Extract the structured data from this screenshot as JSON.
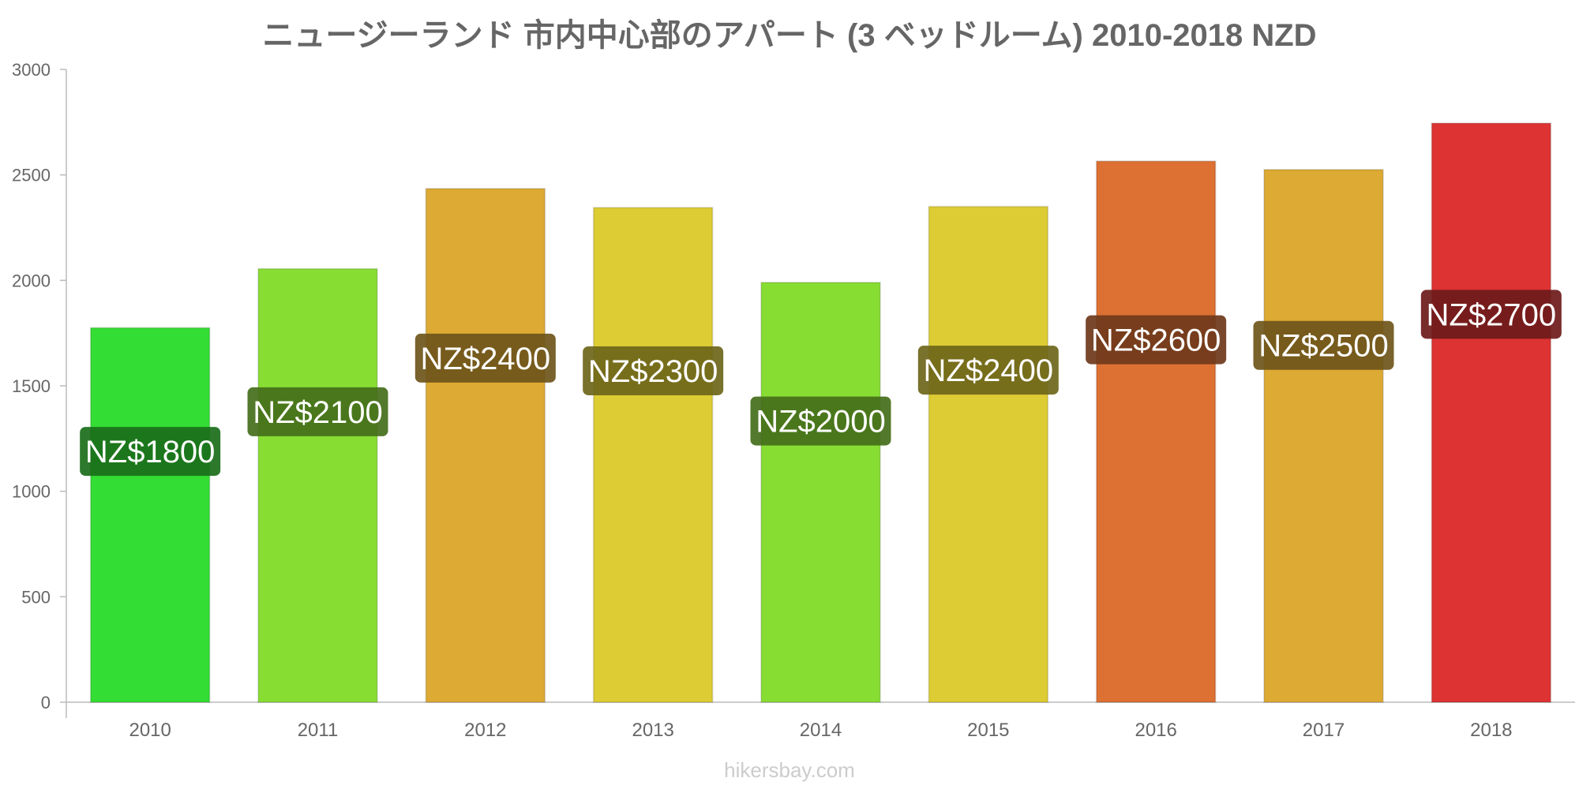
{
  "chart_data": {
    "type": "bar",
    "title": "ニュージーランド 市内中心部のアパート (3 ベッドルーム) 2010-2018 NZD",
    "xlabel": "",
    "ylabel": "",
    "ylim": [
      0,
      3000
    ],
    "yticks": [
      0,
      500,
      1000,
      1500,
      2000,
      2500,
      3000
    ],
    "categories": [
      "2010",
      "2011",
      "2012",
      "2013",
      "2014",
      "2015",
      "2016",
      "2017",
      "2018"
    ],
    "values": [
      1775,
      2055,
      2435,
      2345,
      1990,
      2350,
      2565,
      2525,
      2745
    ],
    "data_labels": [
      "NZ$1800",
      "NZ$2100",
      "NZ$2400",
      "NZ$2300",
      "NZ$2000",
      "NZ$2400",
      "NZ$2600",
      "NZ$2500",
      "NZ$2700"
    ],
    "colors": [
      "#33dd33",
      "#88dd33",
      "#ddaa33",
      "#ddcc33",
      "#88dd33",
      "#ddcc33",
      "#dd7033",
      "#ddaa33",
      "#dd3333"
    ],
    "label_colors": [
      "#1a6e1a",
      "#446e1a",
      "#6e551a",
      "#6e661a",
      "#446e1a",
      "#6e661a",
      "#6e381a",
      "#6e551a",
      "#6e1a1a"
    ],
    "grid": false,
    "legend": "none"
  },
  "footer": {
    "credit": "hikersbay.com"
  }
}
